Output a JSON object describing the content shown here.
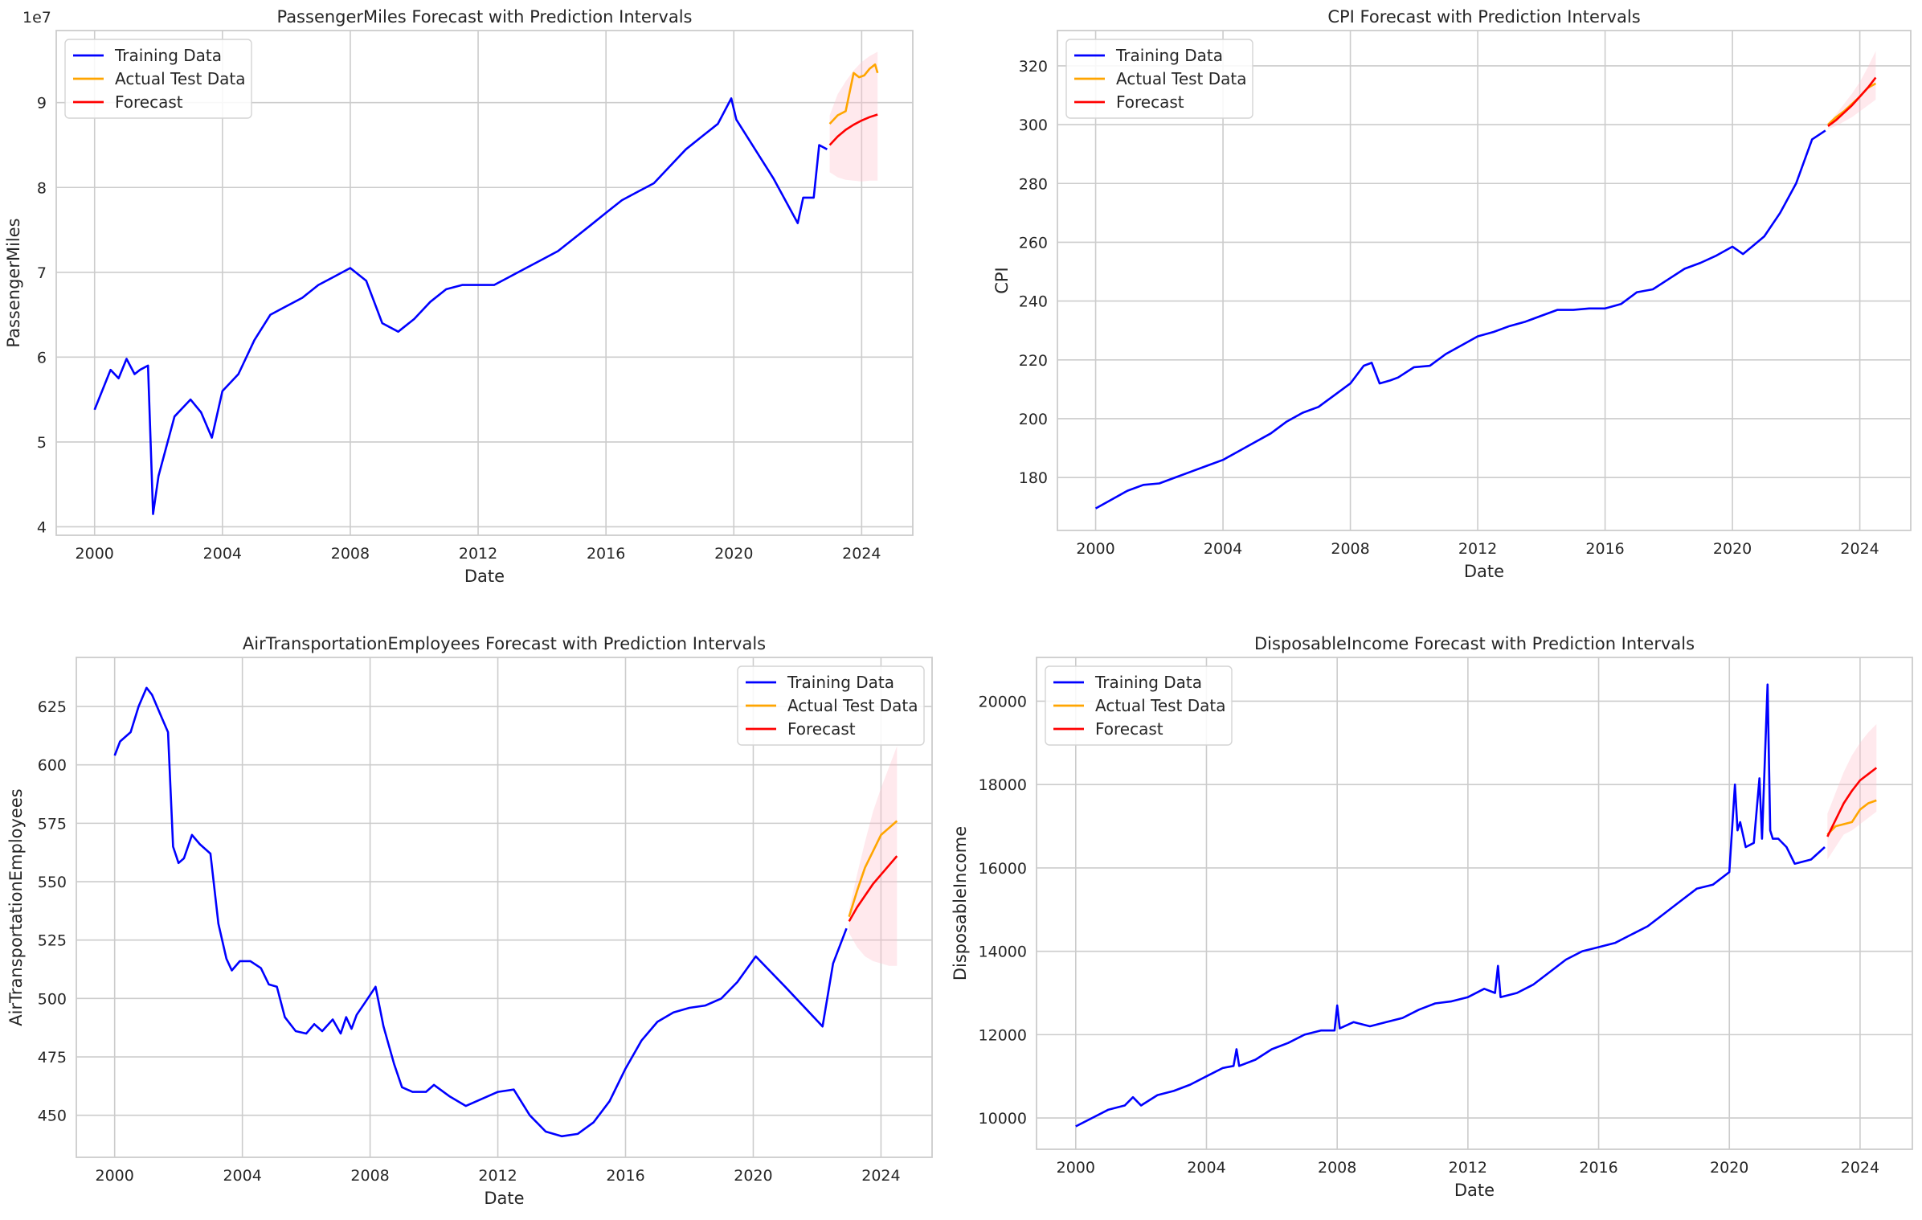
{
  "colors": {
    "training": "#0000ff",
    "actual": "#ffa500",
    "forecast": "#ff0000",
    "interval": "#ffc0cb",
    "grid": "#cccccc",
    "frame": "#cccccc"
  },
  "chart_data": [
    {
      "type": "line",
      "title": "PassengerMiles Forecast with Prediction Intervals",
      "xlabel": "Date",
      "ylabel": "PassengerMiles",
      "offset_text": "1e7",
      "y_scale": 10000000,
      "xlim": [
        1998.8,
        2025.6
      ],
      "ylim": [
        39000000,
        98500000
      ],
      "x_ticks": [
        2000,
        2004,
        2008,
        2012,
        2016,
        2020,
        2024
      ],
      "y_ticks": [
        40000000,
        50000000,
        60000000,
        70000000,
        80000000,
        90000000
      ],
      "y_tick_labels": [
        "4",
        "5",
        "6",
        "7",
        "8",
        "9"
      ],
      "grid": true,
      "legend": {
        "position": "upper-left",
        "entries": [
          "Training Data",
          "Actual Test Data",
          "Forecast"
        ]
      },
      "series": [
        {
          "name": "Training Data",
          "role": "training",
          "x": [
            2000.0,
            2000.5,
            2000.75,
            2001.0,
            2001.25,
            2001.42,
            2001.67,
            2001.83,
            2002.0,
            2002.5,
            2003.0,
            2003.33,
            2003.67,
            2004.0,
            2004.5,
            2005.0,
            2005.5,
            2006.0,
            2006.5,
            2007.0,
            2007.5,
            2008.0,
            2008.5,
            2009.0,
            2009.5,
            2010.0,
            2010.5,
            2011.0,
            2011.5,
            2012.0,
            2012.5,
            2013.0,
            2013.5,
            2014.0,
            2014.5,
            2015.0,
            2015.5,
            2016.0,
            2016.5,
            2017.0,
            2017.5,
            2018.0,
            2018.5,
            2019.0,
            2019.5,
            2019.92,
            2020.08,
            2021.25,
            2022.0,
            2022.17,
            2022.5,
            2022.67,
            2022.92
          ],
          "values": [
            53800000,
            58500000,
            57500000,
            59800000,
            58000000,
            58500000,
            59000000,
            41500000,
            46000000,
            53000000,
            55000000,
            53500000,
            50500000,
            56000000,
            58000000,
            62000000,
            65000000,
            66000000,
            67000000,
            68500000,
            69500000,
            70500000,
            69000000,
            64000000,
            63000000,
            64500000,
            66500000,
            68000000,
            68500000,
            68500000,
            68500000,
            69500000,
            70500000,
            71500000,
            72500000,
            74000000,
            75500000,
            77000000,
            78500000,
            79500000,
            80500000,
            82500000,
            84500000,
            86000000,
            87500000,
            90500000,
            88000000,
            81000000,
            75800000,
            78800000,
            78800000,
            85000000,
            84500000
          ]
        },
        {
          "name": "Actual Test Data",
          "role": "actual",
          "x": [
            2023.0,
            2023.25,
            2023.5,
            2023.75,
            2023.92,
            2024.08,
            2024.25,
            2024.42,
            2024.5
          ],
          "values": [
            87500000,
            88500000,
            89000000,
            93500000,
            93000000,
            93200000,
            94000000,
            94500000,
            93500000
          ]
        },
        {
          "name": "Forecast",
          "role": "forecast",
          "x": [
            2023.0,
            2023.25,
            2023.5,
            2023.75,
            2024.0,
            2024.25,
            2024.5
          ],
          "values": [
            85000000,
            86000000,
            86800000,
            87400000,
            87900000,
            88300000,
            88600000
          ]
        },
        {
          "name": "Prediction Interval",
          "role": "interval",
          "x": [
            2023.0,
            2023.25,
            2023.5,
            2023.75,
            2024.0,
            2024.25,
            2024.5
          ],
          "lower": [
            81800000,
            81200000,
            80900000,
            80800000,
            80700000,
            80800000,
            80800000
          ],
          "upper": [
            88500000,
            91000000,
            92500000,
            93800000,
            94800000,
            95500000,
            96000000
          ]
        }
      ]
    },
    {
      "type": "line",
      "title": "CPI Forecast with Prediction Intervals",
      "xlabel": "Date",
      "ylabel": "CPI",
      "offset_text": "",
      "y_scale": 1,
      "xlim": [
        1998.8,
        2025.6
      ],
      "ylim": [
        162,
        332
      ],
      "x_ticks": [
        2000,
        2004,
        2008,
        2012,
        2016,
        2020,
        2024
      ],
      "y_ticks": [
        180,
        200,
        220,
        240,
        260,
        280,
        300,
        320
      ],
      "y_tick_labels": [
        "180",
        "200",
        "220",
        "240",
        "260",
        "280",
        "300",
        "320"
      ],
      "grid": true,
      "legend": {
        "position": "upper-left",
        "entries": [
          "Training Data",
          "Actual Test Data",
          "Forecast"
        ]
      },
      "series": [
        {
          "name": "Training Data",
          "role": "training",
          "x": [
            2000.0,
            2000.5,
            2001.0,
            2001.5,
            2002.0,
            2002.5,
            2003.0,
            2003.5,
            2004.0,
            2004.5,
            2005.0,
            2005.5,
            2006.0,
            2006.5,
            2007.0,
            2007.5,
            2008.0,
            2008.42,
            2008.67,
            2008.92,
            2009.25,
            2009.5,
            2010.0,
            2010.5,
            2011.0,
            2011.5,
            2012.0,
            2012.5,
            2013.0,
            2013.5,
            2014.0,
            2014.5,
            2015.0,
            2015.5,
            2016.0,
            2016.5,
            2017.0,
            2017.5,
            2018.0,
            2018.5,
            2019.0,
            2019.5,
            2020.0,
            2020.33,
            2020.67,
            2021.0,
            2021.5,
            2022.0,
            2022.5,
            2022.92
          ],
          "values": [
            169.5,
            172.5,
            175.5,
            177.5,
            178,
            180,
            182,
            184,
            186,
            189,
            192,
            195,
            199,
            202,
            204,
            208,
            212,
            218,
            219,
            212,
            213,
            214,
            217.5,
            218,
            222,
            225,
            228,
            229.5,
            231.5,
            233,
            235,
            237,
            237,
            237.5,
            237.5,
            239,
            243,
            244,
            247.5,
            251,
            253,
            255.5,
            258.5,
            256,
            259,
            262,
            270,
            280,
            295,
            298
          ]
        },
        {
          "name": "Actual Test Data",
          "role": "actual",
          "x": [
            2023.0,
            2023.25,
            2023.5,
            2023.75,
            2024.0,
            2024.25,
            2024.5
          ],
          "values": [
            300,
            302.5,
            304.5,
            307,
            309.5,
            312.5,
            314
          ]
        },
        {
          "name": "Forecast",
          "role": "forecast",
          "x": [
            2023.0,
            2023.25,
            2023.5,
            2023.75,
            2024.0,
            2024.25,
            2024.5
          ],
          "values": [
            299.5,
            301.5,
            304,
            306.5,
            309.5,
            312.5,
            316
          ]
        },
        {
          "name": "Prediction Interval",
          "role": "interval",
          "x": [
            2023.0,
            2023.25,
            2023.5,
            2023.75,
            2024.0,
            2024.25,
            2024.5
          ],
          "lower": [
            298.5,
            299.5,
            301,
            302.5,
            304.5,
            306.5,
            308.5
          ],
          "upper": [
            300.5,
            303.5,
            307,
            310.5,
            314.5,
            319.5,
            325
          ]
        }
      ]
    },
    {
      "type": "line",
      "title": "AirTransportationEmployees Forecast with Prediction Intervals",
      "xlabel": "Date",
      "ylabel": "AirTransportationEmployees",
      "offset_text": "",
      "y_scale": 1,
      "xlim": [
        1998.8,
        2025.6
      ],
      "ylim": [
        432,
        646
      ],
      "x_ticks": [
        2000,
        2004,
        2008,
        2012,
        2016,
        2020,
        2024
      ],
      "y_ticks": [
        450,
        475,
        500,
        525,
        550,
        575,
        600,
        625
      ],
      "y_tick_labels": [
        "450",
        "475",
        "500",
        "525",
        "550",
        "575",
        "600",
        "625"
      ],
      "grid": true,
      "legend": {
        "position": "upper-right",
        "entries": [
          "Training Data",
          "Actual Test Data",
          "Forecast"
        ]
      },
      "series": [
        {
          "name": "Training Data",
          "role": "training",
          "x": [
            2000.0,
            2000.17,
            2000.5,
            2000.75,
            2001.0,
            2001.17,
            2001.42,
            2001.67,
            2001.83,
            2002.0,
            2002.17,
            2002.42,
            2002.67,
            2003.0,
            2003.25,
            2003.5,
            2003.67,
            2003.92,
            2004.25,
            2004.58,
            2004.83,
            2005.08,
            2005.33,
            2005.67,
            2006.0,
            2006.25,
            2006.5,
            2006.83,
            2007.08,
            2007.25,
            2007.42,
            2007.58,
            2007.83,
            2008.17,
            2008.42,
            2008.75,
            2009.0,
            2009.33,
            2009.75,
            2010.0,
            2010.5,
            2011.0,
            2011.5,
            2012.0,
            2012.5,
            2013.0,
            2013.5,
            2014.0,
            2014.5,
            2015.0,
            2015.5,
            2016.0,
            2016.5,
            2017.0,
            2017.5,
            2018.0,
            2018.5,
            2019.0,
            2019.5,
            2020.08,
            2021.0,
            2022.17,
            2022.5,
            2022.92
          ],
          "values": [
            604,
            610,
            614,
            625,
            633,
            630,
            622,
            614,
            565,
            558,
            560,
            570,
            566,
            562,
            532,
            517,
            512,
            516,
            516,
            513,
            506,
            505,
            492,
            486,
            485,
            489,
            486,
            491,
            485,
            492,
            487,
            493,
            498,
            505,
            488,
            472,
            462,
            460,
            460,
            463,
            458,
            454,
            457,
            460,
            461,
            450,
            443,
            441,
            442,
            447,
            456,
            470,
            482,
            490,
            494,
            496,
            497,
            500,
            507,
            518,
            505,
            488,
            515,
            530
          ]
        },
        {
          "name": "Actual Test Data",
          "role": "actual",
          "x": [
            2023.0,
            2023.25,
            2023.5,
            2023.75,
            2024.0,
            2024.25,
            2024.5
          ],
          "values": [
            535,
            546,
            556,
            563,
            570,
            573,
            576
          ]
        },
        {
          "name": "Forecast",
          "role": "forecast",
          "x": [
            2023.0,
            2023.25,
            2023.5,
            2023.75,
            2024.0,
            2024.25,
            2024.5
          ],
          "values": [
            533,
            539,
            544,
            549,
            553,
            557,
            561
          ]
        },
        {
          "name": "Prediction Interval",
          "role": "interval",
          "x": [
            2023.0,
            2023.25,
            2023.5,
            2023.75,
            2024.0,
            2024.25,
            2024.5
          ],
          "lower": [
            528,
            522,
            518,
            516,
            515,
            514,
            514
          ],
          "upper": [
            538,
            553,
            567,
            580,
            590,
            599,
            608
          ]
        }
      ]
    },
    {
      "type": "line",
      "title": "DisposableIncome Forecast with Prediction Intervals",
      "xlabel": "Date",
      "ylabel": "DisposableIncome",
      "offset_text": "",
      "y_scale": 1,
      "xlim": [
        1998.8,
        2025.6
      ],
      "ylim": [
        9250,
        21050
      ],
      "x_ticks": [
        2000,
        2004,
        2008,
        2012,
        2016,
        2020,
        2024
      ],
      "y_ticks": [
        10000,
        12000,
        14000,
        16000,
        18000,
        20000
      ],
      "y_tick_labels": [
        "10000",
        "12000",
        "14000",
        "16000",
        "18000",
        "20000"
      ],
      "grid": true,
      "legend": {
        "position": "upper-left",
        "entries": [
          "Training Data",
          "Actual Test Data",
          "Forecast"
        ]
      },
      "series": [
        {
          "name": "Training Data",
          "role": "training",
          "x": [
            2000.0,
            2000.5,
            2001.0,
            2001.5,
            2001.75,
            2002.0,
            2002.5,
            2003.0,
            2003.5,
            2004.0,
            2004.5,
            2004.83,
            2004.92,
            2005.0,
            2005.5,
            2006.0,
            2006.5,
            2007.0,
            2007.5,
            2007.92,
            2008.0,
            2008.08,
            2008.5,
            2009.0,
            2009.5,
            2010.0,
            2010.5,
            2011.0,
            2011.5,
            2012.0,
            2012.5,
            2012.83,
            2012.92,
            2013.0,
            2013.5,
            2014.0,
            2014.5,
            2015.0,
            2015.5,
            2016.0,
            2016.5,
            2017.0,
            2017.5,
            2018.0,
            2018.5,
            2019.0,
            2019.5,
            2020.0,
            2020.17,
            2020.25,
            2020.33,
            2020.5,
            2020.75,
            2020.92,
            2021.0,
            2021.17,
            2021.25,
            2021.33,
            2021.5,
            2021.75,
            2022.0,
            2022.5,
            2022.92
          ],
          "values": [
            9800,
            10000,
            10200,
            10300,
            10500,
            10300,
            10550,
            10650,
            10800,
            11000,
            11200,
            11250,
            11650,
            11250,
            11400,
            11650,
            11800,
            12000,
            12100,
            12100,
            12700,
            12150,
            12300,
            12200,
            12300,
            12400,
            12600,
            12750,
            12800,
            12900,
            13100,
            13000,
            13650,
            12900,
            13000,
            13200,
            13500,
            13800,
            14000,
            14100,
            14200,
            14400,
            14600,
            14900,
            15200,
            15500,
            15600,
            15900,
            18000,
            16900,
            17100,
            16500,
            16600,
            18150,
            16700,
            20400,
            16900,
            16700,
            16700,
            16500,
            16100,
            16200,
            16500
          ]
        },
        {
          "name": "Actual Test Data",
          "role": "actual",
          "x": [
            2023.0,
            2023.25,
            2023.5,
            2023.75,
            2024.0,
            2024.25,
            2024.5
          ],
          "values": [
            16800,
            17000,
            17050,
            17100,
            17400,
            17550,
            17620
          ]
        },
        {
          "name": "Forecast",
          "role": "forecast",
          "x": [
            2023.0,
            2023.25,
            2023.5,
            2023.75,
            2024.0,
            2024.25,
            2024.5
          ],
          "values": [
            16750,
            17150,
            17550,
            17850,
            18100,
            18250,
            18400
          ]
        },
        {
          "name": "Prediction Interval",
          "role": "interval",
          "x": [
            2023.0,
            2023.25,
            2023.5,
            2023.75,
            2024.0,
            2024.25,
            2024.5
          ],
          "lower": [
            16200,
            16500,
            16800,
            16900,
            17050,
            17200,
            17350
          ],
          "upper": [
            17300,
            17800,
            18300,
            18700,
            19000,
            19250,
            19450
          ]
        }
      ]
    }
  ]
}
